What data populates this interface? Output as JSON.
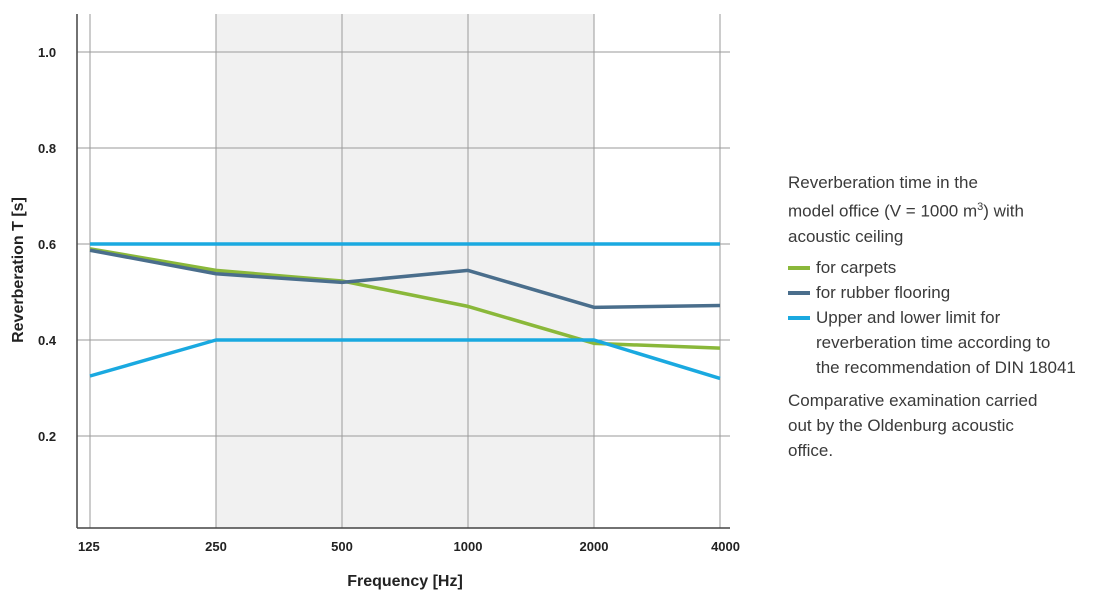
{
  "chart_data": {
    "type": "line",
    "categories": [
      "125",
      "250",
      "500",
      "1000",
      "2000",
      "4000"
    ],
    "xlabel": "Frequency [Hz]",
    "ylabel": "Reverberation T [s]",
    "ylim": [
      0,
      1.08
    ],
    "yticks": [
      "0.2",
      "0.4",
      "0.6",
      "0.8",
      "1.0"
    ],
    "shaded_region": [
      "250",
      "2000"
    ],
    "series": [
      {
        "name": "for carpets",
        "color": "#8ab83a",
        "values": [
          0.59,
          0.545,
          0.523,
          0.47,
          0.393,
          0.383
        ]
      },
      {
        "name": "for rubber flooring",
        "color": "#4a6e8c",
        "values": [
          0.587,
          0.538,
          0.52,
          0.545,
          0.468,
          0.472
        ]
      },
      {
        "name": "Upper and lower limit for reverberation time according to the recommendation of DIN 18041",
        "color": "#1aa9e0",
        "values": [
          0.6,
          0.6,
          0.6,
          0.6,
          0.6,
          0.6
        ]
      },
      {
        "name": "",
        "color": "#1aa9e0",
        "values": [
          0.325,
          0.4,
          0.4,
          0.4,
          0.4,
          0.32
        ]
      }
    ]
  },
  "legend": {
    "title_line1": "Reverberation time in the",
    "title_line2_pre": "model office (V = 1000 m",
    "title_line2_sup": "3",
    "title_line2_post": ") with",
    "title_line3": "acoustic ceiling",
    "items": [
      {
        "label": "for carpets",
        "color": "#8ab83a"
      },
      {
        "label": "for rubber flooring",
        "color": "#4a6e8c"
      },
      {
        "label": "Upper and lower limit for reverberation time according to the recommendation of DIN 18041",
        "color": "#1aa9e0"
      }
    ],
    "note": "Comparative examination carried out by the Oldenburg acoustic office."
  }
}
